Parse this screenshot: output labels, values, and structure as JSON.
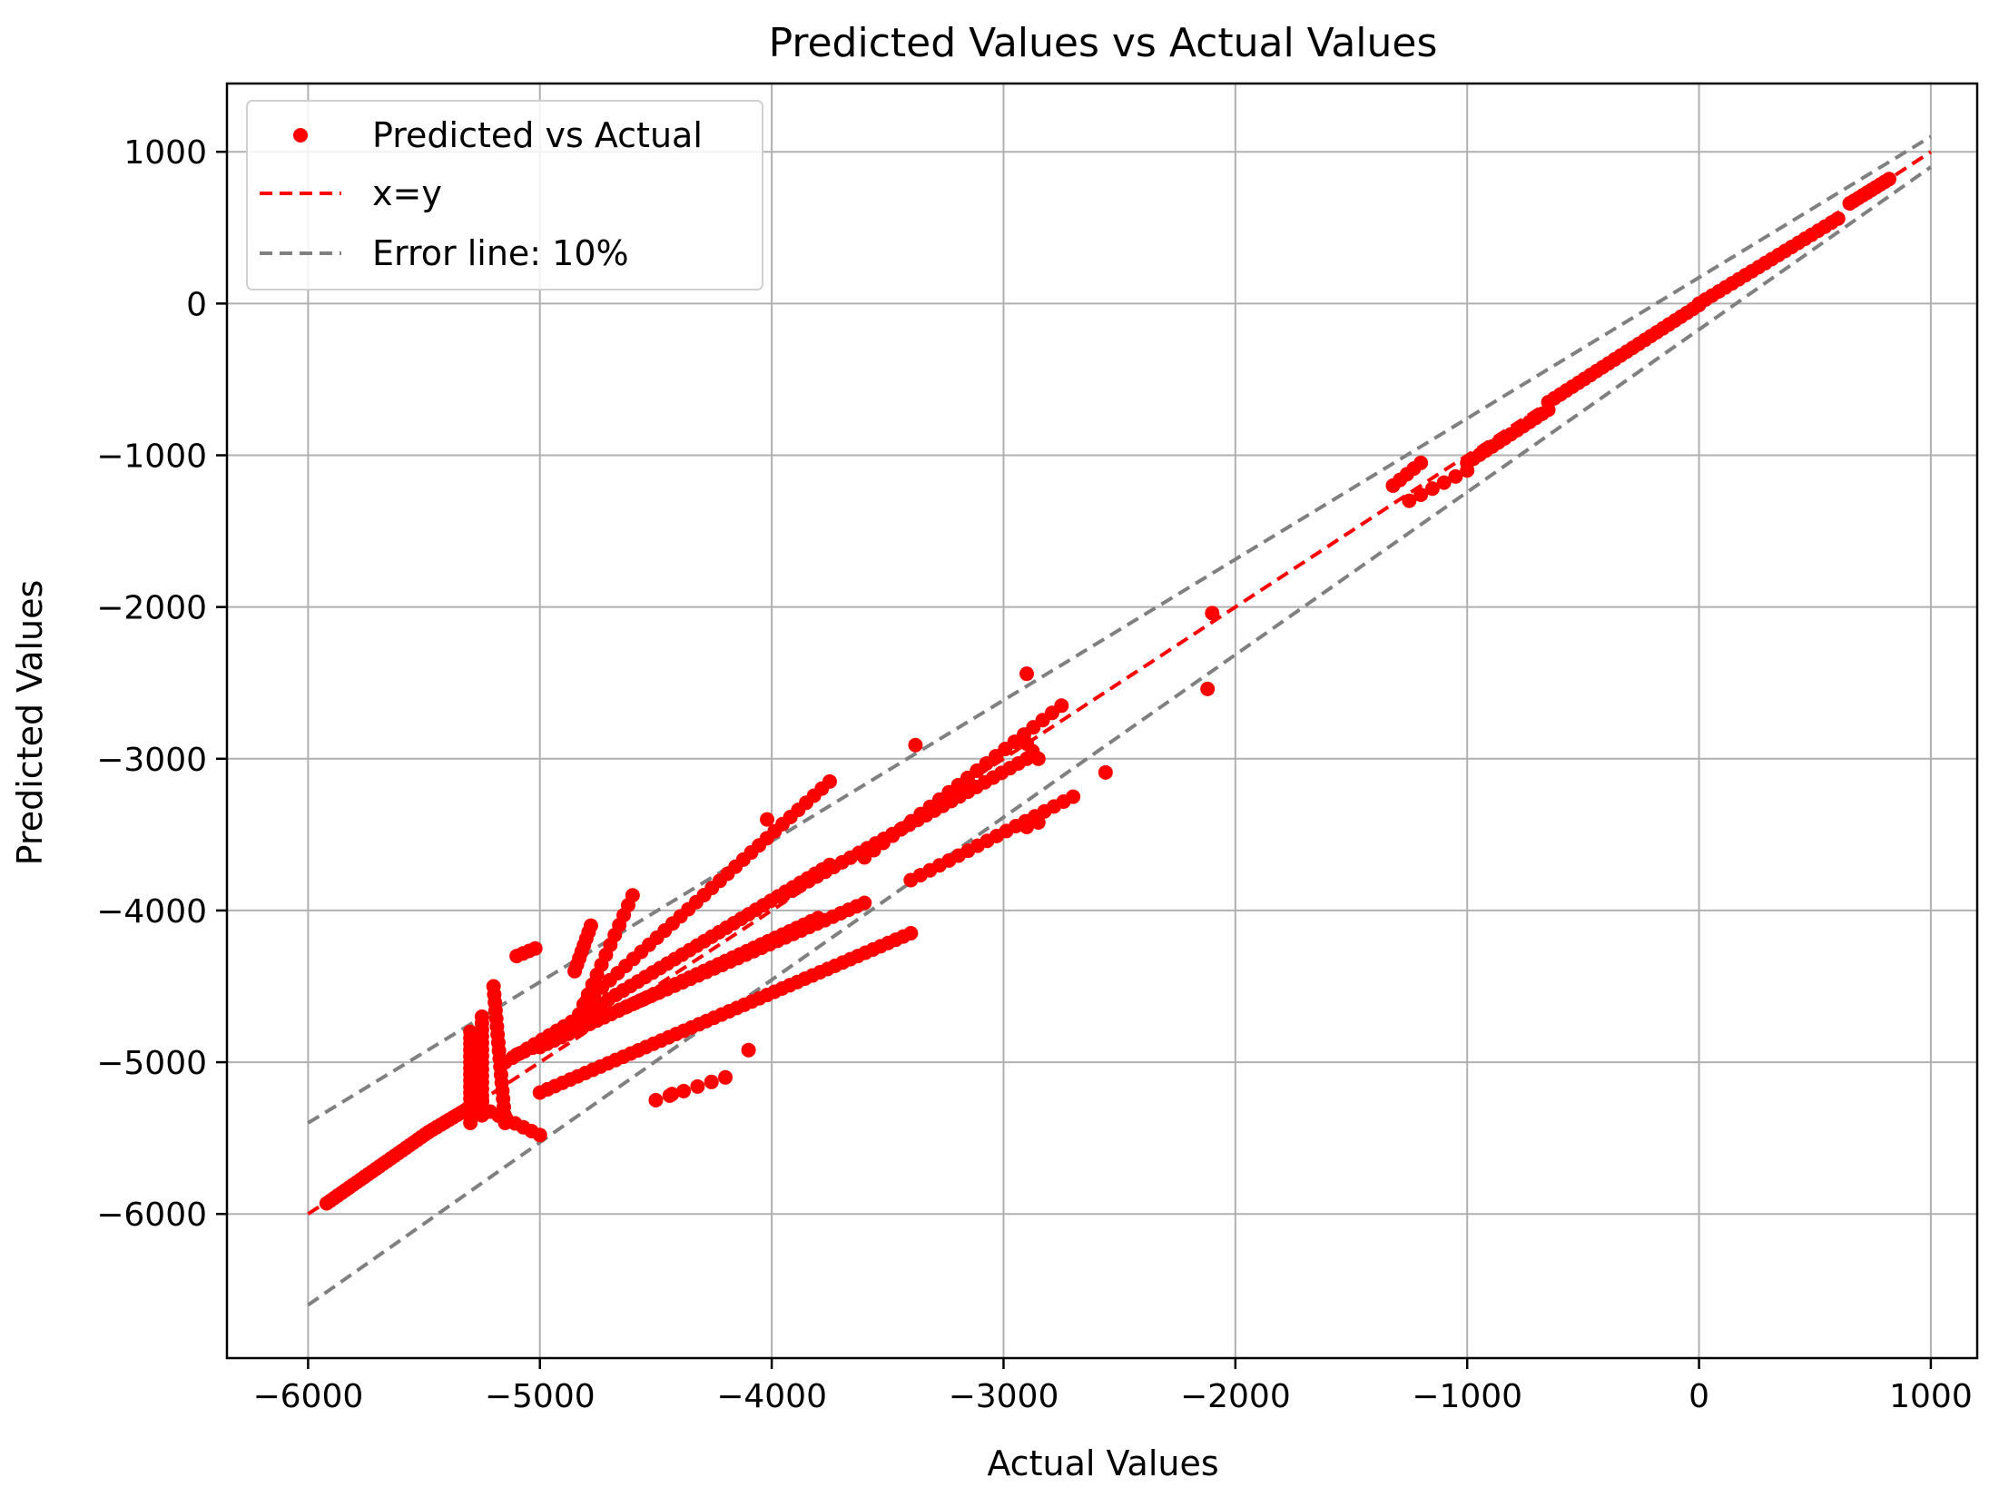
{
  "chart_data": {
    "type": "scatter",
    "title": "Predicted Values vs Actual Values",
    "xlabel": "Actual Values",
    "ylabel": "Predicted Values",
    "xlim": [
      -6350,
      1200
    ],
    "ylim": [
      -6950,
      1450
    ],
    "xticks": [
      -6000,
      -5000,
      -4000,
      -3000,
      -2000,
      -1000,
      0,
      1000
    ],
    "yticks": [
      1000,
      0,
      -1000,
      -2000,
      -3000,
      -4000,
      -5000,
      -6000
    ],
    "xtick_labels": [
      "−6000",
      "−5000",
      "−4000",
      "−3000",
      "−2000",
      "−1000",
      "0",
      "1000"
    ],
    "ytick_labels": [
      "1000",
      "0",
      "−1000",
      "−2000",
      "−3000",
      "−4000",
      "−5000",
      "−6000"
    ],
    "grid": true,
    "legend_position": "top-left",
    "legend": [
      {
        "label": "Predicted vs Actual",
        "kind": "marker",
        "color": "#ff0000"
      },
      {
        "label": "x=y",
        "kind": "dashed-line",
        "color": "#ff0000"
      },
      {
        "label": "Error line: 10%",
        "kind": "dashed-line",
        "color": "#808080"
      }
    ],
    "lines": [
      {
        "name": "x=y",
        "color": "#ff0000",
        "x": [
          -6000,
          1000
        ],
        "y": [
          -6000,
          1000
        ]
      },
      {
        "name": "Error line: 10%",
        "color": "#808080",
        "x": [
          -6000,
          1000
        ],
        "y": [
          -5400,
          1100
        ]
      },
      {
        "name": "Error line: 10%",
        "color": "#808080",
        "x": [
          -6000,
          1000
        ],
        "y": [
          -6600,
          900
        ]
      }
    ],
    "series": [
      {
        "name": "Predicted vs Actual",
        "color": "#ff0000",
        "segments": [
          {
            "x0": -5920,
            "y0": -5930,
            "x1": -5480,
            "y1": -5460,
            "n": 28
          },
          {
            "x0": -5480,
            "y0": -5460,
            "x1": -5250,
            "y1": -5250,
            "n": 14
          },
          {
            "x0": -5300,
            "y0": -4800,
            "x1": -5300,
            "y1": -5400,
            "n": 16
          },
          {
            "x0": -5250,
            "y0": -4700,
            "x1": -5250,
            "y1": -5350,
            "n": 16
          },
          {
            "x0": -5200,
            "y0": -4500,
            "x1": -5150,
            "y1": -5400,
            "n": 18
          },
          {
            "x0": -5100,
            "y0": -4300,
            "x1": -5020,
            "y1": -4250,
            "n": 4
          },
          {
            "x0": -5250,
            "y0": -5300,
            "x1": -5000,
            "y1": -5480,
            "n": 8
          },
          {
            "x0": -5000,
            "y0": -5200,
            "x1": -3400,
            "y1": -4150,
            "n": 50
          },
          {
            "x0": -5150,
            "y0": -5000,
            "x1": -3750,
            "y1": -3700,
            "n": 45
          },
          {
            "x0": -5100,
            "y0": -4950,
            "x1": -3600,
            "y1": -3950,
            "n": 45
          },
          {
            "x0": -5000,
            "y0": -4900,
            "x1": -3800,
            "y1": -4050,
            "n": 40
          },
          {
            "x0": -4850,
            "y0": -4750,
            "x1": -4600,
            "y1": -3900,
            "n": 14
          },
          {
            "x0": -4800,
            "y0": -4600,
            "x1": -3750,
            "y1": -3150,
            "n": 32
          },
          {
            "x0": -4850,
            "y0": -4400,
            "x1": -4780,
            "y1": -4100,
            "n": 8
          },
          {
            "x0": -3950,
            "y0": -3900,
            "x1": -2900,
            "y1": -3000,
            "n": 30
          },
          {
            "x0": -3600,
            "y0": -3650,
            "x1": -2750,
            "y1": -2650,
            "n": 22
          },
          {
            "x0": -3400,
            "y0": -3800,
            "x1": -2700,
            "y1": -3250,
            "n": 18
          },
          {
            "x0": -4500,
            "y0": -5250,
            "x1": -4200,
            "y1": -5100,
            "n": 6
          },
          {
            "x0": -2900,
            "y0": -3450,
            "x1": -2850,
            "y1": -3420,
            "n": 2
          },
          {
            "x0": -2900,
            "y0": -2900,
            "x1": -2850,
            "y1": -3000,
            "n": 3
          },
          {
            "x0": -1320,
            "y0": -1200,
            "x1": -1200,
            "y1": -1050,
            "n": 5
          },
          {
            "x0": -1250,
            "y0": -1300,
            "x1": -1000,
            "y1": -1100,
            "n": 6
          },
          {
            "x0": -1000,
            "y0": -1050,
            "x1": -650,
            "y1": -700,
            "n": 14
          },
          {
            "x0": -650,
            "y0": -650,
            "x1": 0,
            "y1": -10,
            "n": 26
          },
          {
            "x0": 0,
            "y0": 0,
            "x1": 600,
            "y1": 560,
            "n": 22
          },
          {
            "x0": 650,
            "y0": 660,
            "x1": 820,
            "y1": 820,
            "n": 10
          }
        ],
        "points": [
          {
            "x": -2900,
            "y": -2440
          },
          {
            "x": -3380,
            "y": -2910
          },
          {
            "x": -2100,
            "y": -2040
          },
          {
            "x": -2120,
            "y": -2540
          },
          {
            "x": -2560,
            "y": -3090
          },
          {
            "x": -4020,
            "y": -3400
          },
          {
            "x": -4430,
            "y": -5210
          },
          {
            "x": -4100,
            "y": -4920
          }
        ]
      }
    ]
  }
}
